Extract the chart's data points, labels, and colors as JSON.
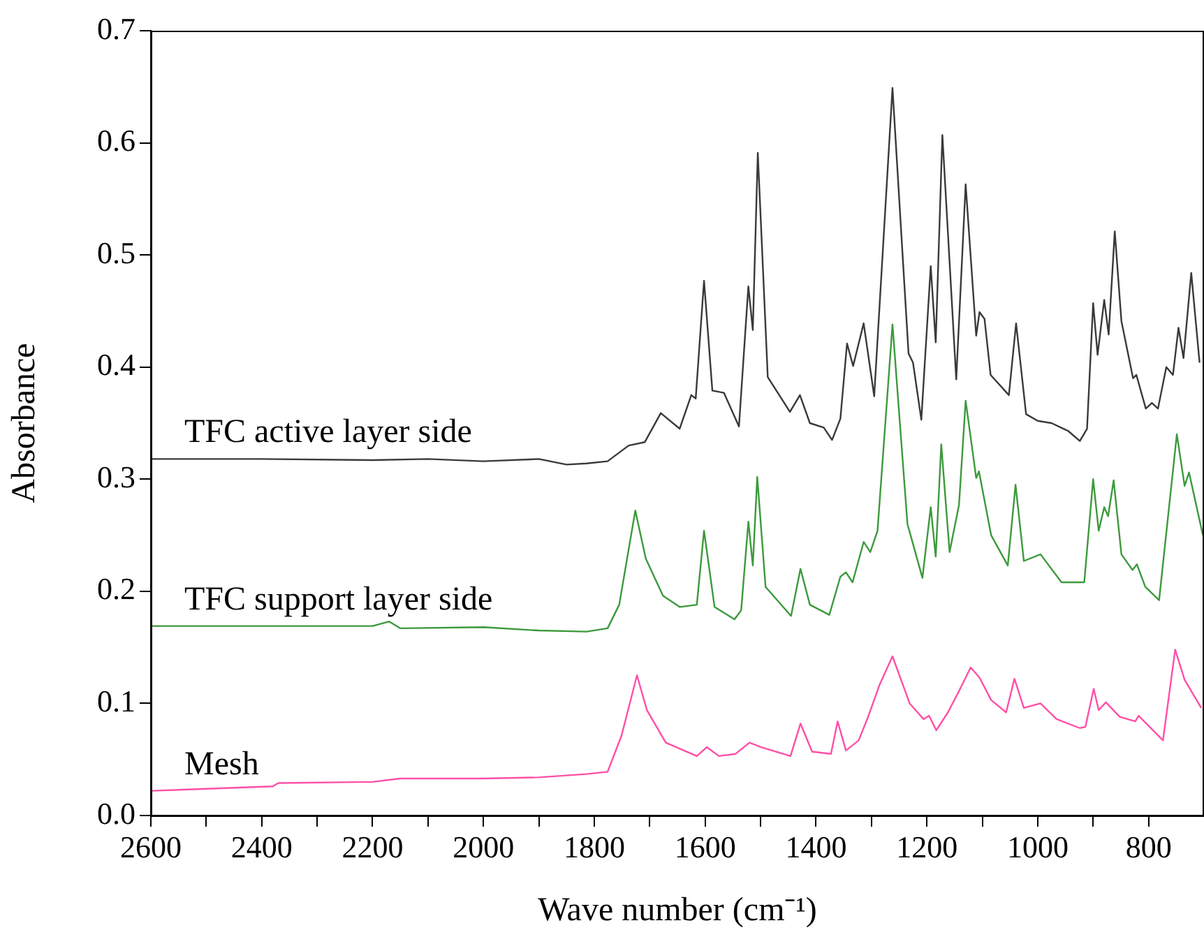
{
  "chart_data": {
    "type": "line",
    "xlabel": "Wave number (cm⁻¹)",
    "ylabel": "Absorbance",
    "legend": false,
    "grid": false,
    "marker": "none",
    "line_style": "solid",
    "xlim": [
      2600,
      700
    ],
    "ylim": [
      0,
      0.7
    ],
    "xticks": [
      2600,
      {
        "value": 2500,
        "label": null
      },
      2400,
      {
        "value": 2300,
        "label": null
      },
      2200,
      {
        "value": 2100,
        "label": null
      },
      2000,
      {
        "value": 1900,
        "label": null
      },
      1800,
      {
        "value": 1700,
        "label": null
      },
      1600,
      {
        "value": 1500,
        "label": null
      },
      1400,
      {
        "value": 1300,
        "label": null
      },
      1200,
      {
        "value": 1100,
        "label": null
      },
      1000,
      {
        "value": 900,
        "label": null
      },
      800
    ],
    "yticks": [
      {
        "value": 0,
        "label": "0.0"
      },
      {
        "value": 0.1,
        "label": "0.1"
      },
      {
        "value": 0.2,
        "label": "0.2"
      },
      {
        "value": 0.3,
        "label": "0.3"
      },
      {
        "value": 0.4,
        "label": "0.4"
      },
      {
        "value": 0.5,
        "label": "0.5"
      },
      {
        "value": 0.6,
        "label": "0.6"
      },
      {
        "value": 0.7,
        "label": "0.7"
      }
    ],
    "series": [
      {
        "name": "TFC active layer side",
        "color": "#3a3a3a",
        "x": [
          2600,
          2400,
          2200,
          2100,
          2000,
          1900,
          1850,
          1814,
          1776,
          1738,
          1709,
          1680,
          1646,
          1625,
          1617,
          1602,
          1587,
          1566,
          1539,
          1522,
          1514,
          1505,
          1487,
          1447,
          1429,
          1411,
          1386,
          1371,
          1356,
          1344,
          1333,
          1314,
          1295,
          1262,
          1233,
          1225,
          1210,
          1193,
          1184,
          1172,
          1147,
          1130,
          1111,
          1105,
          1096,
          1085,
          1052,
          1039,
          1021,
          1000,
          975,
          945,
          924,
          911,
          900,
          892,
          880,
          872,
          861,
          849,
          828,
          822,
          805,
          794,
          783,
          768,
          756,
          746,
          737,
          723,
          708
        ],
        "values": [
          0.318,
          0.318,
          0.317,
          0.318,
          0.316,
          0.318,
          0.313,
          0.314,
          0.316,
          0.33,
          0.333,
          0.359,
          0.345,
          0.375,
          0.372,
          0.477,
          0.379,
          0.377,
          0.347,
          0.472,
          0.433,
          0.591,
          0.391,
          0.36,
          0.375,
          0.35,
          0.346,
          0.335,
          0.354,
          0.421,
          0.401,
          0.439,
          0.374,
          0.649,
          0.412,
          0.404,
          0.353,
          0.49,
          0.422,
          0.607,
          0.389,
          0.563,
          0.428,
          0.449,
          0.443,
          0.393,
          0.375,
          0.439,
          0.358,
          0.352,
          0.35,
          0.343,
          0.334,
          0.345,
          0.457,
          0.411,
          0.46,
          0.429,
          0.521,
          0.441,
          0.39,
          0.393,
          0.363,
          0.368,
          0.363,
          0.4,
          0.393,
          0.435,
          0.408,
          0.484,
          0.404
        ]
      },
      {
        "name": "TFC support layer side",
        "color": "#3c9a3c",
        "x": [
          2600,
          2400,
          2200,
          2170,
          2150,
          2000,
          1900,
          1814,
          1776,
          1755,
          1726,
          1707,
          1676,
          1646,
          1615,
          1602,
          1583,
          1547,
          1535,
          1522,
          1514,
          1506,
          1491,
          1445,
          1428,
          1411,
          1376,
          1356,
          1346,
          1334,
          1314,
          1302,
          1289,
          1262,
          1235,
          1208,
          1193,
          1184,
          1174,
          1159,
          1142,
          1130,
          1111,
          1106,
          1084,
          1054,
          1040,
          1025,
          995,
          957,
          916,
          900,
          890,
          880,
          873,
          863,
          849,
          829,
          821,
          806,
          781,
          749,
          735,
          727,
          702
        ],
        "values": [
          0.169,
          0.169,
          0.169,
          0.173,
          0.167,
          0.168,
          0.165,
          0.164,
          0.167,
          0.188,
          0.272,
          0.229,
          0.196,
          0.186,
          0.188,
          0.254,
          0.186,
          0.175,
          0.183,
          0.262,
          0.223,
          0.302,
          0.204,
          0.178,
          0.22,
          0.188,
          0.179,
          0.213,
          0.217,
          0.208,
          0.244,
          0.235,
          0.254,
          0.438,
          0.26,
          0.212,
          0.275,
          0.231,
          0.331,
          0.235,
          0.277,
          0.37,
          0.301,
          0.307,
          0.25,
          0.223,
          0.295,
          0.227,
          0.233,
          0.208,
          0.208,
          0.3,
          0.254,
          0.275,
          0.267,
          0.299,
          0.233,
          0.219,
          0.224,
          0.204,
          0.192,
          0.34,
          0.294,
          0.306,
          0.25
        ]
      },
      {
        "name": "Mesh",
        "color": "#ff4fa7",
        "x": [
          2600,
          2380,
          2370,
          2200,
          2150,
          2000,
          1900,
          1814,
          1776,
          1751,
          1723,
          1705,
          1671,
          1615,
          1597,
          1575,
          1545,
          1520,
          1499,
          1446,
          1428,
          1407,
          1373,
          1361,
          1346,
          1323,
          1306,
          1285,
          1262,
          1231,
          1206,
          1196,
          1183,
          1162,
          1142,
          1121,
          1105,
          1084,
          1057,
          1042,
          1025,
          995,
          966,
          924,
          914,
          899,
          890,
          877,
          852,
          824,
          818,
          774,
          752,
          735,
          705
        ],
        "values": [
          0.022,
          0.026,
          0.029,
          0.03,
          0.033,
          0.033,
          0.034,
          0.037,
          0.039,
          0.071,
          0.125,
          0.094,
          0.065,
          0.053,
          0.061,
          0.053,
          0.055,
          0.065,
          0.061,
          0.053,
          0.082,
          0.057,
          0.055,
          0.084,
          0.058,
          0.067,
          0.088,
          0.117,
          0.142,
          0.1,
          0.086,
          0.089,
          0.076,
          0.092,
          0.111,
          0.132,
          0.123,
          0.103,
          0.092,
          0.122,
          0.096,
          0.1,
          0.086,
          0.078,
          0.079,
          0.113,
          0.094,
          0.101,
          0.088,
          0.084,
          0.089,
          0.067,
          0.148,
          0.121,
          0.096
        ]
      }
    ]
  }
}
